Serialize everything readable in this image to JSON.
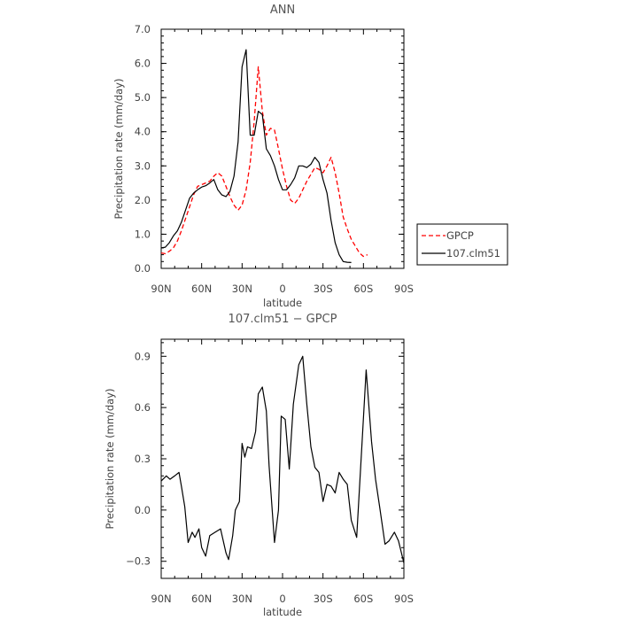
{
  "chart_data": [
    {
      "type": "line",
      "title": "ANN",
      "xlabel": "latitude",
      "ylabel": "Precipitation rate (mm/day)",
      "x": [
        -90,
        -87,
        -84,
        -81,
        -78,
        -75,
        -72,
        -69,
        -66,
        -63,
        -60,
        -57,
        -54,
        -51,
        -48,
        -45,
        -42,
        -39,
        -36,
        -33,
        -30,
        -27,
        -24,
        -21,
        -18,
        -15,
        -12,
        -9,
        -6,
        -3,
        0,
        3,
        6,
        9,
        12,
        15,
        18,
        21,
        24,
        27,
        30,
        33,
        36,
        39,
        42,
        45,
        48,
        51,
        54,
        57,
        60,
        63,
        66,
        69,
        72,
        75,
        78,
        81,
        84,
        87,
        90
      ],
      "xticks": [
        "90N",
        "60N",
        "30N",
        "0",
        "30S",
        "60S",
        "90S"
      ],
      "xtick_values": [
        -90,
        -60,
        -30,
        0,
        30,
        60,
        90
      ],
      "xlim": [
        -90,
        90
      ],
      "ylim": [
        0,
        7
      ],
      "yticks": [
        "0.0",
        "1.0",
        "2.0",
        "3.0",
        "4.0",
        "5.0",
        "6.0",
        "7.0"
      ],
      "ytick_values": [
        0,
        1,
        2,
        3,
        4,
        5,
        6,
        7
      ],
      "legend_position": "right-bottom",
      "series": [
        {
          "name": "GPCP",
          "color": "#ff0000",
          "dash": "dashed",
          "values": [
            0.45,
            0.43,
            0.5,
            0.6,
            0.8,
            1.1,
            1.45,
            1.8,
            2.15,
            2.4,
            2.45,
            2.5,
            2.55,
            2.7,
            2.8,
            2.7,
            2.4,
            2.1,
            1.85,
            1.7,
            1.85,
            2.3,
            3.1,
            4.3,
            5.9,
            4.6,
            3.9,
            4.1,
            4.05,
            3.5,
            2.9,
            2.4,
            2.0,
            1.9,
            2.05,
            2.3,
            2.55,
            2.75,
            2.95,
            2.9,
            2.8,
            3.0,
            3.25,
            2.8,
            2.2,
            1.5,
            1.15,
            0.85,
            0.65,
            0.45,
            0.35,
            0.4
          ],
          "x": [
            -90,
            -87,
            -84,
            -81,
            -78,
            -75,
            -72,
            -69,
            -66,
            -63,
            -60,
            -57,
            -54,
            -51,
            -48,
            -45,
            -42,
            -39,
            -36,
            -33,
            -30,
            -27,
            -24,
            -21,
            -18,
            -15,
            -12,
            -9,
            -6,
            -3,
            0,
            3,
            6,
            9,
            12,
            15,
            18,
            21,
            24,
            27,
            30,
            33,
            36,
            39,
            42,
            45,
            48,
            51,
            54,
            57,
            60,
            63
          ]
        },
        {
          "name": "107.clm51",
          "color": "#000000",
          "dash": "solid",
          "values": [
            0.6,
            0.62,
            0.75,
            0.95,
            1.1,
            1.35,
            1.7,
            2.05,
            2.2,
            2.3,
            2.38,
            2.42,
            2.5,
            2.6,
            2.3,
            2.15,
            2.1,
            2.25,
            2.7,
            3.7,
            5.9,
            6.4,
            3.9,
            3.9,
            4.6,
            4.5,
            3.5,
            3.3,
            3.0,
            2.6,
            2.3,
            2.3,
            2.45,
            2.65,
            3.0,
            3.0,
            2.95,
            3.05,
            3.25,
            3.1,
            2.6,
            2.2,
            1.4,
            0.75,
            0.4,
            0.2,
            0.18,
            0.17
          ],
          "x": [
            -90,
            -87,
            -84,
            -81,
            -78,
            -75,
            -72,
            -69,
            -66,
            -63,
            -60,
            -57,
            -54,
            -51,
            -48,
            -45,
            -42,
            -39,
            -36,
            -33,
            -30,
            -27,
            -24,
            -21,
            -18,
            -15,
            -12,
            -9,
            -6,
            -3,
            0,
            3,
            6,
            9,
            12,
            15,
            18,
            21,
            24,
            27,
            30,
            33,
            36,
            39,
            42,
            45,
            48,
            51
          ]
        }
      ]
    },
    {
      "type": "line",
      "title": "107.clm51 − GPCP",
      "xlabel": "latitude",
      "ylabel": "Precipitation rate (mm/day)",
      "xticks": [
        "90N",
        "60N",
        "30N",
        "0",
        "30S",
        "60S",
        "90S"
      ],
      "xtick_values": [
        -90,
        -60,
        -30,
        0,
        30,
        60,
        90
      ],
      "xlim": [
        -90,
        90
      ],
      "ylim": [
        -0.4,
        1.0
      ],
      "yticks": [
        "−0.3",
        "0.0",
        "0.3",
        "0.6",
        "0.9"
      ],
      "ytick_values": [
        -0.3,
        0.0,
        0.3,
        0.6,
        0.9
      ],
      "series": [
        {
          "name": "107.clm51 − GPCP",
          "color": "#000000",
          "dash": "solid",
          "x": [
            -90,
            -86.2,
            -83.5,
            -80,
            -76.8,
            -75,
            -72.5,
            -70,
            -67,
            -65,
            -62,
            -60,
            -57,
            -54,
            -50,
            -46,
            -42,
            -40,
            -37,
            -35,
            -32,
            -30,
            -28,
            -26,
            -23,
            -20,
            -18,
            -15,
            -12,
            -10,
            -6,
            -3,
            -1,
            2,
            5,
            8,
            12,
            15,
            18,
            21,
            24,
            27,
            30,
            33,
            36,
            39,
            42,
            45,
            48,
            51,
            55,
            58,
            62,
            66,
            69,
            72,
            76,
            79,
            83,
            86,
            90
          ],
          "values": [
            0.17,
            0.2,
            0.18,
            0.2,
            0.22,
            0.14,
            0.02,
            -0.19,
            -0.13,
            -0.16,
            -0.11,
            -0.22,
            -0.27,
            -0.15,
            -0.13,
            -0.11,
            -0.25,
            -0.29,
            -0.15,
            0.0,
            0.05,
            0.39,
            0.31,
            0.37,
            0.36,
            0.46,
            0.68,
            0.72,
            0.58,
            0.26,
            -0.19,
            0.0,
            0.55,
            0.53,
            0.24,
            0.62,
            0.85,
            0.9,
            0.62,
            0.37,
            0.25,
            0.22,
            0.05,
            0.15,
            0.14,
            0.1,
            0.22,
            0.18,
            0.15,
            -0.06,
            -0.16,
            0.26,
            0.82,
            0.4,
            0.18,
            0.02,
            -0.2,
            -0.18,
            -0.13,
            -0.18,
            -0.31
          ]
        }
      ]
    }
  ]
}
